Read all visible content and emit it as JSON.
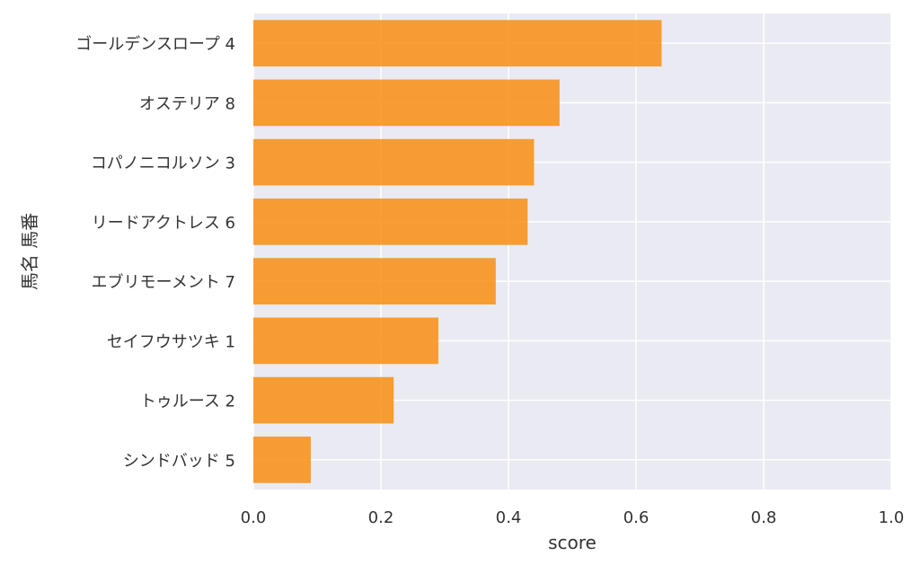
{
  "chart_data": {
    "type": "bar",
    "orientation": "horizontal",
    "xlabel": "score",
    "ylabel": "馬名 馬番",
    "xlim": [
      0.0,
      1.0
    ],
    "xticks": [
      "0.0",
      "0.2",
      "0.4",
      "0.6",
      "0.8",
      "1.0"
    ],
    "grid": true,
    "categories": [
      "ゴールデンスロープ 4",
      "オステリア 8",
      "コパノニコルソン 3",
      "リードアクトレス 6",
      "エブリモーメント 7",
      "セイフウサツキ 1",
      "トゥルース 2",
      "シンドバッド 5"
    ],
    "values": [
      0.64,
      0.48,
      0.44,
      0.43,
      0.38,
      0.29,
      0.22,
      0.09
    ],
    "bar_color": "#F7931E",
    "background_color": "#EAEAF2",
    "grid_color": "#FFFFFF"
  }
}
